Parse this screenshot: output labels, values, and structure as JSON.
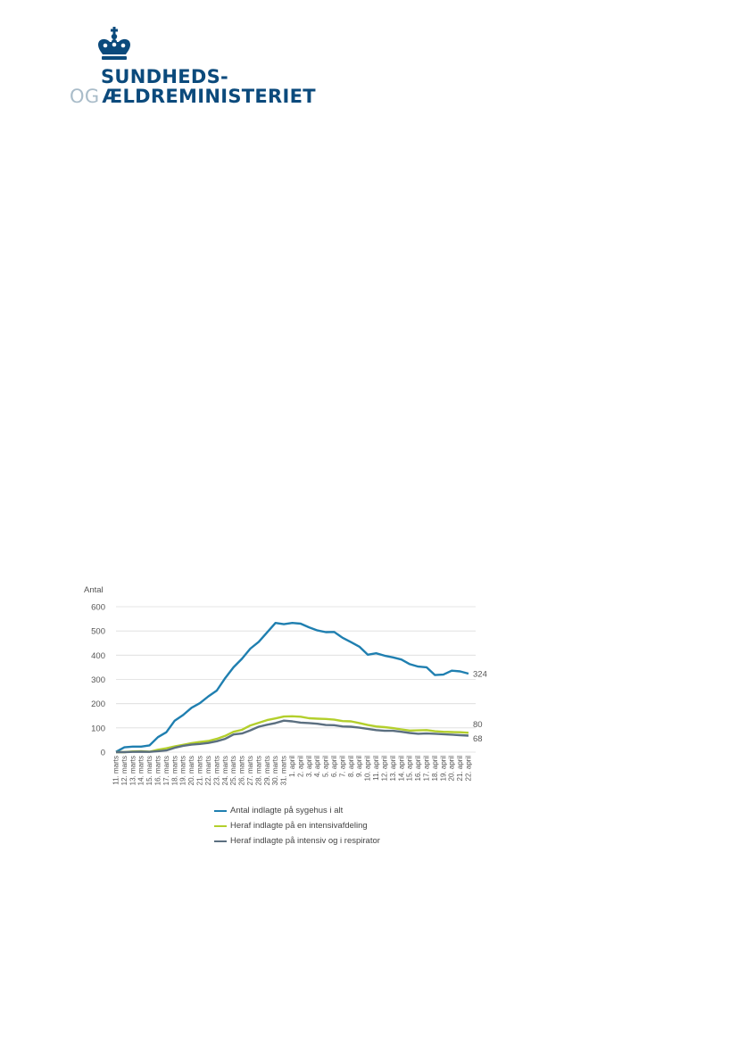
{
  "logo": {
    "line1": "SUNDHEDS-",
    "line2_prefix": "OG",
    "line2": "ÆLDREMINISTERIET",
    "brand_color": "#0b4a7c",
    "prefix_color": "#a9bcc9",
    "icon": "crown-icon"
  },
  "chart_data": {
    "type": "line",
    "ylabel": "Antal",
    "ylim": [
      0,
      600
    ],
    "yticks": [
      0,
      100,
      200,
      300,
      400,
      500,
      600
    ],
    "grid": true,
    "legend_position": "bottom",
    "categories": [
      "11. marts",
      "12. marts",
      "13. marts",
      "14. marts",
      "15. marts",
      "16. marts",
      "17. marts",
      "18. marts",
      "19. marts",
      "20. marts",
      "21. marts",
      "22. marts",
      "23. marts",
      "24. marts",
      "25. marts",
      "26. marts",
      "27. marts",
      "28. marts",
      "29. marts",
      "30. marts",
      "31. marts",
      "1. april",
      "2. april",
      "3. april",
      "4. april",
      "5. april",
      "6. april",
      "7. april",
      "8. april",
      "9. april",
      "10. april",
      "11. april",
      "12. april",
      "13. april",
      "14. april",
      "15. april",
      "16. april",
      "17. april",
      "18. april",
      "19. april",
      "20. april",
      "21. april",
      "22. april"
    ],
    "series": [
      {
        "name": "Antal indlagte på sygehus i alt",
        "color": "#1f7fb0",
        "values": [
          1,
          20,
          23,
          23,
          28,
          62,
          82,
          130,
          153,
          183,
          202,
          230,
          254,
          305,
          350,
          385,
          427,
          455,
          494,
          533,
          528,
          533,
          530,
          515,
          502,
          495,
          496,
          472,
          454,
          435,
          402,
          408,
          398,
          391,
          382,
          363,
          353,
          350,
          318,
          320,
          336,
          333,
          324
        ]
      },
      {
        "name": "Heraf indlagte på en intensivafdeling",
        "color": "#b3cf2c",
        "values": [
          0,
          0,
          3,
          4,
          2,
          10,
          16,
          24,
          30,
          37,
          42,
          46,
          55,
          67,
          84,
          92,
          110,
          121,
          132,
          139,
          147,
          148,
          146,
          140,
          138,
          137,
          134,
          128,
          127,
          120,
          112,
          106,
          103,
          99,
          94,
          89,
          90,
          91,
          86,
          84,
          83,
          82,
          80
        ]
      },
      {
        "name": "Heraf indlagte på intensiv og i respirator",
        "color": "#5b6f80",
        "values": [
          0,
          0,
          1,
          2,
          1,
          4,
          7,
          18,
          26,
          31,
          34,
          38,
          45,
          55,
          73,
          77,
          90,
          105,
          113,
          120,
          130,
          127,
          122,
          120,
          117,
          112,
          111,
          106,
          105,
          101,
          96,
          91,
          88,
          88,
          84,
          79,
          76,
          77,
          76,
          74,
          72,
          70,
          68
        ]
      }
    ],
    "end_labels": [
      "324",
      "80",
      "68"
    ]
  }
}
